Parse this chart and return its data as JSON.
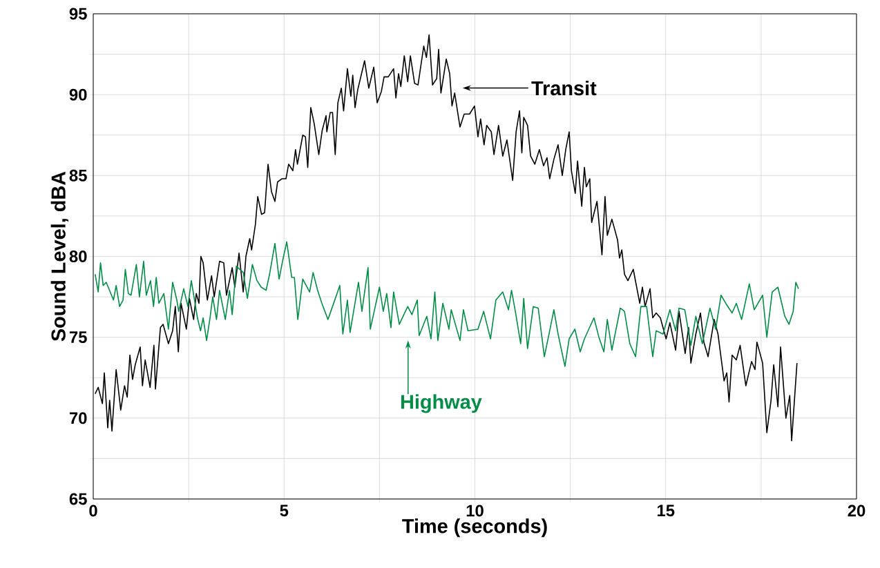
{
  "chart_data": {
    "type": "line",
    "xlabel": "Time (seconds)",
    "ylabel": "Sound Level, dBA",
    "xlim": [
      0,
      20
    ],
    "ylim": [
      65,
      95
    ],
    "xticks": [
      0,
      {
        "value": 2.5,
        "label": null
      },
      5,
      {
        "value": 7.5,
        "label": null
      },
      10,
      {
        "value": 12.5,
        "label": null
      },
      15,
      {
        "value": 17.5,
        "label": null
      },
      20
    ],
    "yticks": [
      65,
      {
        "value": 67.5,
        "label": null
      },
      70,
      {
        "value": 72.5,
        "label": null
      },
      75,
      {
        "value": 77.5,
        "label": null
      },
      80,
      {
        "value": 82.5,
        "label": null
      },
      85,
      {
        "value": 87.5,
        "label": null
      },
      90,
      {
        "value": 92.5,
        "label": null
      },
      95
    ],
    "grid": true,
    "line_style": "solid",
    "marker": "none",
    "annotations": [
      "Transit",
      "Highway"
    ],
    "series": [
      {
        "color": "#000000",
        "x": [
          0.05,
          0.13,
          0.24,
          0.29,
          0.38,
          0.43,
          0.49,
          0.6,
          0.72,
          0.82,
          0.89,
          0.96,
          1.03,
          1.1,
          1.23,
          1.29,
          1.36,
          1.49,
          1.59,
          1.63,
          1.76,
          1.83,
          1.97,
          2.08,
          2.15,
          2.23,
          2.3,
          2.44,
          2.52,
          2.63,
          2.7,
          2.77,
          2.82,
          2.88,
          2.99,
          3.1,
          3.17,
          3.31,
          3.42,
          3.49,
          3.64,
          3.71,
          3.82,
          3.93,
          4.0,
          4.1,
          4.15,
          4.25,
          4.31,
          4.41,
          4.49,
          4.58,
          4.67,
          4.76,
          4.83,
          4.94,
          5.05,
          5.12,
          5.23,
          5.3,
          5.35,
          5.49,
          5.56,
          5.62,
          5.7,
          5.79,
          5.91,
          6.0,
          6.1,
          6.12,
          6.21,
          6.27,
          6.34,
          6.41,
          6.5,
          6.56,
          6.66,
          6.75,
          6.8,
          6.86,
          6.93,
          7.11,
          7.22,
          7.35,
          7.44,
          7.55,
          7.62,
          7.73,
          7.87,
          7.93,
          8.0,
          8.06,
          8.15,
          8.24,
          8.31,
          8.42,
          8.51,
          8.66,
          8.73,
          8.8,
          8.89,
          9.0,
          9.05,
          9.11,
          9.25,
          9.34,
          9.4,
          9.47,
          9.61,
          9.72,
          9.86,
          9.99,
          10.08,
          10.15,
          10.24,
          10.31,
          10.43,
          10.5,
          10.62,
          10.73,
          10.84,
          10.99,
          11.08,
          11.17,
          11.23,
          11.28,
          11.38,
          11.46,
          11.57,
          11.69,
          11.8,
          11.89,
          11.96,
          12.07,
          12.18,
          12.29,
          12.38,
          12.47,
          12.53,
          12.63,
          12.69,
          12.8,
          12.87,
          12.92,
          13.01,
          13.06,
          13.2,
          13.33,
          13.41,
          13.47,
          13.59,
          13.74,
          13.79,
          13.85,
          13.92,
          14.01,
          14.15,
          14.32,
          14.39,
          14.46,
          14.59,
          14.66,
          14.75,
          14.86,
          15.01,
          15.11,
          15.26,
          15.35,
          15.51,
          15.6,
          15.66,
          15.79,
          15.91,
          16.0,
          16.11,
          16.27,
          16.37,
          16.53,
          16.6,
          16.66,
          16.74,
          16.85,
          16.95,
          17.1,
          17.25,
          17.34,
          17.39,
          17.54,
          17.65,
          17.76,
          17.83,
          17.94,
          18.01,
          18.15,
          18.25,
          18.3,
          18.44
        ],
        "values": [
          71.5,
          71.9,
          70.9,
          72.8,
          69.4,
          71.1,
          69.2,
          73.0,
          70.5,
          72.0,
          71.3,
          73.9,
          72.4,
          73.3,
          74.4,
          72.0,
          73.6,
          71.9,
          74.5,
          71.8,
          75.6,
          75.8,
          74.6,
          75.4,
          76.9,
          74.1,
          77.1,
          75.5,
          77.4,
          76.1,
          77.7,
          77.1,
          80.0,
          79.6,
          77.3,
          78.8,
          77.5,
          79.7,
          79.6,
          77.6,
          79.3,
          78.1,
          80.2,
          77.8,
          80.0,
          81.1,
          80.4,
          82.0,
          83.7,
          82.6,
          82.7,
          85.7,
          84.0,
          83.4,
          84.6,
          84.8,
          84.8,
          85.7,
          85.3,
          86.6,
          85.7,
          87.5,
          87.4,
          85.5,
          89.2,
          88.2,
          86.3,
          87.8,
          88.7,
          87.7,
          88.9,
          88.9,
          86.3,
          89.5,
          90.4,
          89.0,
          91.6,
          89.9,
          91.2,
          89.2,
          90.3,
          92.1,
          90.4,
          91.7,
          89.5,
          90.2,
          91.1,
          91.1,
          91.6,
          89.8,
          91.3,
          90.5,
          92.4,
          90.8,
          92.4,
          90.7,
          90.6,
          93.0,
          92.3,
          93.7,
          90.6,
          91.0,
          92.8,
          90.1,
          92.2,
          91.3,
          89.3,
          90.1,
          88.0,
          88.8,
          88.8,
          89.3,
          87.4,
          88.5,
          86.9,
          88.1,
          87.7,
          86.3,
          88.1,
          86.2,
          87.2,
          84.7,
          87.7,
          89.0,
          86.4,
          88.6,
          88.1,
          86.2,
          85.7,
          86.6,
          85.6,
          86.1,
          84.8,
          86.0,
          86.9,
          85.0,
          86.6,
          87.7,
          85.3,
          83.9,
          85.9,
          83.1,
          85.5,
          84.3,
          84.8,
          82.1,
          83.4,
          80.1,
          83.7,
          81.3,
          82.3,
          81.0,
          79.9,
          80.4,
          78.9,
          78.5,
          79.2,
          77.1,
          78.1,
          76.9,
          78.0,
          76.2,
          76.5,
          76.2,
          74.9,
          75.9,
          74.2,
          76.6,
          74.0,
          75.6,
          73.4,
          75.2,
          76.5,
          74.7,
          73.8,
          76.1,
          75.2,
          72.3,
          72.8,
          71.0,
          73.9,
          73.6,
          74.5,
          72.0,
          73.5,
          73.0,
          74.7,
          73.4,
          69.1,
          71.1,
          73.3,
          70.7,
          74.4,
          70.0,
          71.4,
          68.6,
          73.4
        ]
      },
      {
        "color": "#008c46",
        "x": [
          0.05,
          0.13,
          0.19,
          0.26,
          0.34,
          0.53,
          0.6,
          0.69,
          0.78,
          0.84,
          0.92,
          0.99,
          1.13,
          1.21,
          1.32,
          1.39,
          1.5,
          1.58,
          1.65,
          1.72,
          1.85,
          1.97,
          2.08,
          2.19,
          2.24,
          2.37,
          2.48,
          2.57,
          2.73,
          2.81,
          2.88,
          2.97,
          3.06,
          3.13,
          3.23,
          3.31,
          3.46,
          3.57,
          3.64,
          3.75,
          3.93,
          4.04,
          4.17,
          4.29,
          4.4,
          4.53,
          4.62,
          4.76,
          4.87,
          4.96,
          5.07,
          5.2,
          5.27,
          5.36,
          5.49,
          5.67,
          5.76,
          5.88,
          5.99,
          6.15,
          6.27,
          6.46,
          6.54,
          6.66,
          6.73,
          6.95,
          7.04,
          7.2,
          7.26,
          7.5,
          7.6,
          7.69,
          7.8,
          7.87,
          8.02,
          8.24,
          8.35,
          8.49,
          8.54,
          8.74,
          8.85,
          8.95,
          9.03,
          9.16,
          9.32,
          9.38,
          9.61,
          9.7,
          9.82,
          10.08,
          10.23,
          10.41,
          10.55,
          10.73,
          10.88,
          10.96,
          11.06,
          11.2,
          11.28,
          11.38,
          11.53,
          11.66,
          11.82,
          11.96,
          12.07,
          12.18,
          12.36,
          12.47,
          12.62,
          12.76,
          12.87,
          13.12,
          13.25,
          13.38,
          13.47,
          13.59,
          13.81,
          13.92,
          14.06,
          14.21,
          14.35,
          14.5,
          14.66,
          14.75,
          14.93,
          15.11,
          15.26,
          15.35,
          15.5,
          15.66,
          15.79,
          15.96,
          16.16,
          16.31,
          16.45,
          16.6,
          16.74,
          16.85,
          16.99,
          17.19,
          17.32,
          17.54,
          17.65,
          17.79,
          17.94,
          18.12,
          18.23,
          18.34,
          18.41,
          18.48
        ],
        "values": [
          78.9,
          77.8,
          79.6,
          78.2,
          78.4,
          77.3,
          78.2,
          76.9,
          77.3,
          79.2,
          77.7,
          77.6,
          79.5,
          77.5,
          79.7,
          77.6,
          78.5,
          76.9,
          78.7,
          77.1,
          77.7,
          75.5,
          78.4,
          77.3,
          76.6,
          78.0,
          76.9,
          78.5,
          76.2,
          75.4,
          76.2,
          74.8,
          76.2,
          77.5,
          76.1,
          77.9,
          76.1,
          77.9,
          76.4,
          79.4,
          79.0,
          77.4,
          79.5,
          78.5,
          78.1,
          77.9,
          78.9,
          80.8,
          78.6,
          79.7,
          80.9,
          78.7,
          78.7,
          76.1,
          78.6,
          77.8,
          79.0,
          77.9,
          77.1,
          76.1,
          76.9,
          78.2,
          75.2,
          77.3,
          75.3,
          78.4,
          76.6,
          79.3,
          75.5,
          78.1,
          76.6,
          77.7,
          75.6,
          77.8,
          75.8,
          76.9,
          76.4,
          77.3,
          75.1,
          76.3,
          74.9,
          77.8,
          74.8,
          77.1,
          75.5,
          76.7,
          74.8,
          76.7,
          75.4,
          75.5,
          76.6,
          74.9,
          77.3,
          77.8,
          76.7,
          77.9,
          76.6,
          74.6,
          77.4,
          74.3,
          76.9,
          76.8,
          73.8,
          75.4,
          76.7,
          75.2,
          73.2,
          74.9,
          75.5,
          74.1,
          74.9,
          76.2,
          75.0,
          74.1,
          76.1,
          74.2,
          76.8,
          76.6,
          74.6,
          73.8,
          76.9,
          76.9,
          73.8,
          75.4,
          75.2,
          76.7,
          75.4,
          76.8,
          76.7,
          74.5,
          76.3,
          74.6,
          76.8,
          75.5,
          77.6,
          77.0,
          76.5,
          77.1,
          76.1,
          78.3,
          76.7,
          77.6,
          75.0,
          77.8,
          78.1,
          76.3,
          75.8,
          76.6,
          78.4,
          78.0
        ]
      }
    ]
  }
}
